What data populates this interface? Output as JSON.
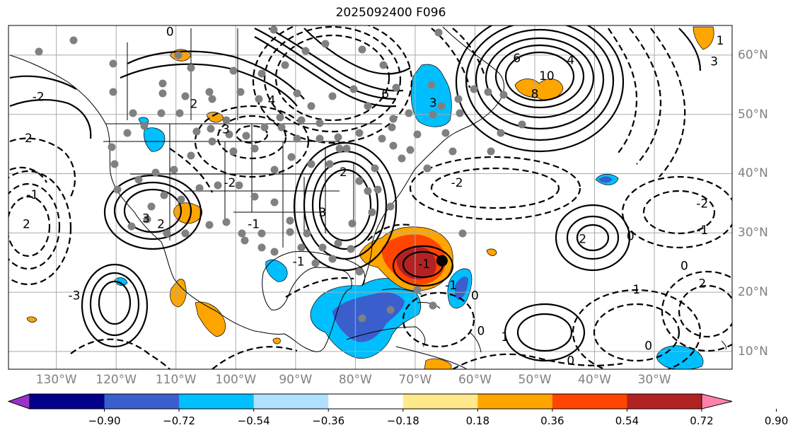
{
  "title": "2025092400 F096",
  "map": {
    "projection": "equirectangular",
    "lon_range": [
      -138,
      -17
    ],
    "lat_range": [
      7,
      65
    ],
    "lon_labels": [
      "130°W",
      "120°W",
      "110°W",
      "100°W",
      "90°W",
      "80°W",
      "70°W",
      "60°W",
      "50°W",
      "40°W",
      "30°W"
    ],
    "lat_labels": [
      "60°N",
      "50°N",
      "40°N",
      "30°N",
      "20°N",
      "10°N"
    ],
    "gridlines": true,
    "contour_labels": [
      {
        "text": "10",
        "lon": -48,
        "lat": 56.5
      },
      {
        "text": "8",
        "lon": -50,
        "lat": 53.5
      },
      {
        "text": "6",
        "lon": -53,
        "lat": 59.5
      },
      {
        "text": "4",
        "lon": -44,
        "lat": 59.2
      },
      {
        "text": "3",
        "lon": -20,
        "lat": 59
      },
      {
        "text": "6",
        "lon": -75,
        "lat": 53.5
      },
      {
        "text": "4",
        "lon": -94,
        "lat": 52.4
      },
      {
        "text": "2",
        "lon": -107,
        "lat": 51.8
      },
      {
        "text": "3",
        "lon": -67,
        "lat": 52
      },
      {
        "text": "2",
        "lon": -82,
        "lat": 40.3
      },
      {
        "text": "3",
        "lon": -85.5,
        "lat": 33.5
      },
      {
        "text": "3",
        "lon": -115,
        "lat": 32.5
      },
      {
        "text": "2",
        "lon": -112.5,
        "lat": 31.5
      },
      {
        "text": "-1",
        "lon": -68.5,
        "lat": 24.8
      },
      {
        "text": "2",
        "lon": -42,
        "lat": 29
      },
      {
        "text": "0",
        "lon": -34,
        "lat": 29.5
      },
      {
        "text": "-3",
        "lon": -127,
        "lat": 19.5
      },
      {
        "text": "-2",
        "lon": -133,
        "lat": 53
      },
      {
        "text": "-2",
        "lon": -135,
        "lat": 46
      },
      {
        "text": "-1",
        "lon": -134,
        "lat": 36.5
      },
      {
        "text": "2",
        "lon": -135,
        "lat": 31.5
      },
      {
        "text": "-2",
        "lon": -63,
        "lat": 38.5
      },
      {
        "text": "-2",
        "lon": -22,
        "lat": 35
      },
      {
        "text": "-1",
        "lon": -22,
        "lat": 30.5
      },
      {
        "text": "0",
        "lon": -25,
        "lat": 24.5
      },
      {
        "text": "2",
        "lon": -22,
        "lat": 21.5
      },
      {
        "text": "1",
        "lon": -33,
        "lat": 20.5
      },
      {
        "text": "-1",
        "lon": -64,
        "lat": 21.2
      },
      {
        "text": "0",
        "lon": -60,
        "lat": 19.5
      },
      {
        "text": "0",
        "lon": -59,
        "lat": 13.5
      },
      {
        "text": "1",
        "lon": -55,
        "lat": 12.5
      },
      {
        "text": "0",
        "lon": -31,
        "lat": 11
      },
      {
        "text": "0",
        "lon": -44,
        "lat": 8.5
      },
      {
        "text": "-1",
        "lon": -89.5,
        "lat": 25.2
      },
      {
        "text": "-1",
        "lon": -97,
        "lat": 31.5
      },
      {
        "text": "-2",
        "lon": -101,
        "lat": 38.5
      },
      {
        "text": "-3",
        "lon": -102,
        "lat": 47.5
      },
      {
        "text": "0",
        "lon": -111,
        "lat": 64
      },
      {
        "text": "1",
        "lon": -19,
        "lat": 62.5
      }
    ],
    "marker": {
      "lon": -65.5,
      "lat": 25.3
    }
  },
  "colorbar": {
    "ticks": [
      "−0.90",
      "−0.72",
      "−0.54",
      "−0.36",
      "−0.18",
      "0.18",
      "0.36",
      "0.54",
      "0.72",
      "0.90"
    ],
    "colors": [
      "#9932cc",
      "#00008b",
      "#3a5fcd",
      "#00bfff",
      "#b0e2ff",
      "#ffffff",
      "#ffe98a",
      "#ffa500",
      "#ff4500",
      "#b22222",
      "#ff82ab"
    ]
  }
}
